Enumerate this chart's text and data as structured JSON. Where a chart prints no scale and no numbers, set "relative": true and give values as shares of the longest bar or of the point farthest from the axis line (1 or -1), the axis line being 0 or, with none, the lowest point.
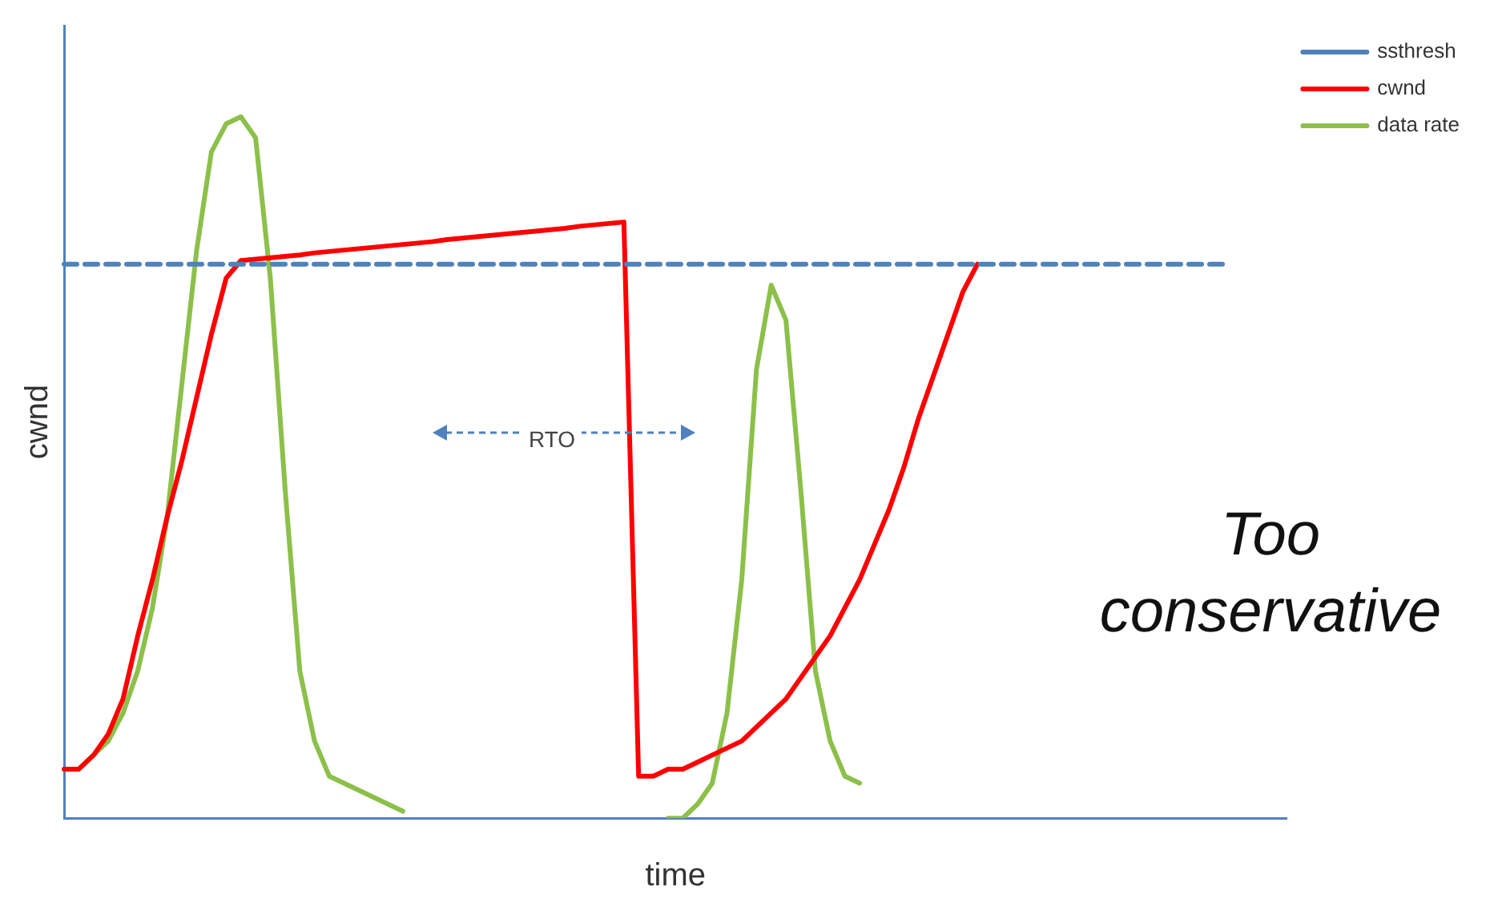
{
  "chart_data": {
    "type": "line",
    "relative": true,
    "xlabel": "time",
    "ylabel": "cwnd",
    "legend": "top right",
    "grid": false,
    "marker": "none",
    "categories": [
      null,
      null,
      null,
      null,
      null,
      null,
      null,
      null,
      null,
      null,
      null,
      null,
      null,
      null,
      null,
      null,
      null,
      null,
      null,
      null,
      null,
      null,
      null,
      null,
      null,
      null,
      null,
      null,
      null,
      null,
      null,
      null,
      null,
      null,
      null,
      null,
      null,
      null,
      null,
      null,
      null,
      null,
      null,
      null,
      null,
      null,
      null,
      null,
      null,
      null,
      null,
      null,
      null,
      null,
      null,
      null,
      null,
      null,
      null,
      null,
      null,
      null,
      null,
      null,
      null,
      null,
      null,
      null,
      null,
      null,
      null,
      null,
      null,
      null,
      null,
      null,
      null,
      null,
      null,
      null,
      null,
      null,
      null,
      null
    ],
    "series": [
      {
        "name": "ssthresh",
        "color": "#4f81bd",
        "line_style": "dashed",
        "values": [
          0.79,
          0.79,
          0.79,
          0.79,
          0.79,
          0.79,
          0.79,
          0.79,
          0.79,
          0.79,
          0.79,
          0.79,
          0.79,
          0.79,
          0.79,
          0.79,
          0.79,
          0.79,
          0.79,
          0.79,
          0.79,
          0.79,
          0.79,
          0.79,
          0.79,
          0.79,
          0.79,
          0.79,
          0.79,
          0.79,
          0.79,
          0.79,
          0.79,
          0.79,
          0.79,
          0.79,
          0.79,
          0.79,
          0.79,
          0.79,
          0.79,
          0.79,
          0.79,
          0.79,
          0.79,
          0.79,
          0.79,
          0.79,
          0.79,
          0.79,
          0.79,
          0.79,
          0.79,
          0.79,
          0.79,
          0.79,
          0.79,
          0.79,
          0.79,
          0.79,
          0.79,
          0.79,
          0.79,
          0.79,
          0.79,
          0.79,
          0.79,
          0.79,
          0.79,
          0.79,
          0.79,
          0.79,
          0.79,
          0.79,
          0.79,
          0.79,
          0.79,
          0.79,
          0.79,
          0.79,
          null,
          null,
          null,
          null
        ]
      },
      {
        "name": "cwnd",
        "color": "#ff0000",
        "line_style": "solid",
        "values": [
          0.07,
          0.07,
          0.09,
          0.12,
          0.17,
          0.26,
          0.34,
          0.43,
          0.51,
          0.6,
          0.69,
          0.77,
          0.795,
          0.797,
          0.799,
          0.801,
          0.803,
          0.806,
          0.808,
          0.81,
          0.812,
          0.814,
          0.816,
          0.818,
          0.82,
          0.822,
          0.825,
          0.827,
          0.829,
          0.831,
          0.833,
          0.835,
          0.837,
          0.839,
          0.841,
          0.844,
          0.846,
          0.848,
          0.85,
          0.06,
          0.06,
          0.07,
          0.07,
          0.08,
          0.09,
          0.1,
          0.11,
          0.13,
          0.15,
          0.17,
          0.2,
          0.23,
          0.26,
          0.3,
          0.34,
          0.39,
          0.44,
          0.5,
          0.57,
          0.63,
          0.69,
          0.75,
          0.79,
          null,
          null,
          null,
          null,
          null,
          null,
          null,
          null,
          null,
          null,
          null,
          null,
          null,
          null,
          null,
          null,
          null,
          null,
          null,
          null,
          null
        ]
      },
      {
        "name": "data rate",
        "color": "#8cc04a",
        "line_style": "solid",
        "values": [
          null,
          0.07,
          0.09,
          0.11,
          0.15,
          0.21,
          0.3,
          0.43,
          0.62,
          0.81,
          0.95,
          0.99,
          1,
          0.97,
          0.77,
          0.47,
          0.21,
          0.11,
          0.06,
          0.05,
          0.04,
          0.03,
          0.02,
          0.01,
          null,
          null,
          null,
          null,
          null,
          null,
          null,
          null,
          null,
          null,
          null,
          null,
          null,
          null,
          null,
          null,
          null,
          0,
          0,
          0.02,
          0.05,
          0.15,
          0.34,
          0.64,
          0.76,
          0.71,
          0.47,
          0.21,
          0.11,
          0.06,
          0.05,
          null,
          null,
          null,
          null,
          null,
          null,
          null,
          null,
          null,
          null,
          null,
          null,
          null,
          null,
          null,
          null,
          null,
          null,
          null,
          null,
          null,
          null,
          null,
          null,
          null,
          null,
          null,
          null,
          null
        ]
      }
    ],
    "annotations": [
      "RTO",
      "Too conservative"
    ]
  }
}
